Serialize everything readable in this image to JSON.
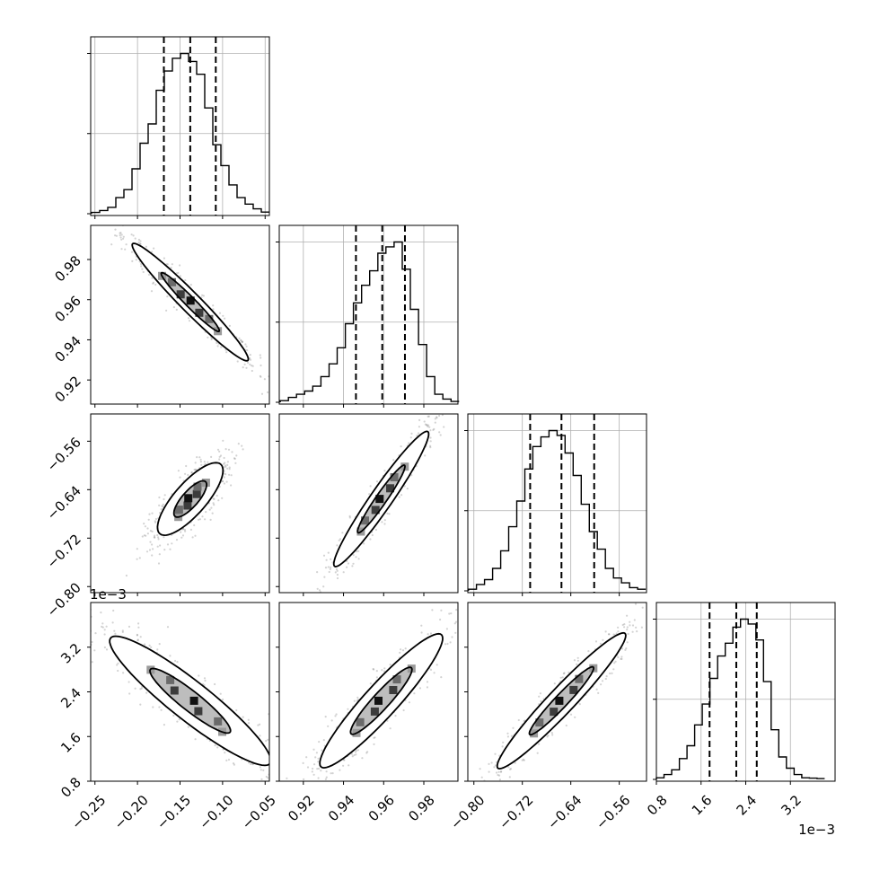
{
  "chart_data": {
    "type": "corner",
    "n_params": 4,
    "params": [
      {
        "ticks": [
          -0.25,
          -0.2,
          -0.15,
          -0.1,
          -0.05
        ],
        "tick_labels": [
          "−0.25",
          "−0.20",
          "−0.15",
          "−0.10",
          "−0.05"
        ],
        "range": [
          -0.255,
          -0.045
        ],
        "offset_text": ""
      },
      {
        "ticks": [
          0.92,
          0.94,
          0.96,
          0.98
        ],
        "tick_labels": [
          "0.92",
          "0.94",
          "0.96",
          "0.98"
        ],
        "range": [
          0.908,
          0.997
        ],
        "offset_text": ""
      },
      {
        "ticks": [
          -0.8,
          -0.72,
          -0.64,
          -0.56
        ],
        "tick_labels": [
          "−0.80",
          "−0.72",
          "−0.64",
          "−0.56"
        ],
        "range": [
          -0.81,
          -0.515
        ],
        "offset_text": ""
      },
      {
        "ticks": [
          0.8,
          1.6,
          2.4,
          3.2
        ],
        "tick_labels": [
          "0.8",
          "1.6",
          "2.4",
          "3.2"
        ],
        "range": [
          0.8,
          4.0
        ],
        "offset_text": "1e−3"
      }
    ],
    "histograms": [
      {
        "edges": [
          -0.254,
          -0.2445,
          -0.235,
          -0.2255,
          -0.216,
          -0.2065,
          -0.197,
          -0.1875,
          -0.178,
          -0.1685,
          -0.159,
          -0.1495,
          -0.14,
          -0.1305,
          -0.121,
          -0.1115,
          -0.102,
          -0.0925,
          -0.083,
          -0.0735,
          -0.064,
          -0.0545,
          -0.045
        ],
        "counts": [
          0.008,
          0.02,
          0.04,
          0.1,
          0.15,
          0.28,
          0.44,
          0.56,
          0.77,
          0.89,
          0.97,
          1.0,
          0.95,
          0.87,
          0.66,
          0.43,
          0.3,
          0.18,
          0.1,
          0.06,
          0.03,
          0.01
        ],
        "quantiles": [
          -0.169,
          -0.138,
          -0.108
        ]
      },
      {
        "edges": [
          0.9085,
          0.91255,
          0.9166,
          0.92065,
          0.9247,
          0.92875,
          0.9328,
          0.93685,
          0.9409,
          0.94495,
          0.949,
          0.95305,
          0.9571,
          0.96115,
          0.9652,
          0.96925,
          0.9733,
          0.97735,
          0.9814,
          0.98545,
          0.9895,
          0.99355,
          0.9976
        ],
        "counts": [
          0.01,
          0.03,
          0.05,
          0.07,
          0.1,
          0.16,
          0.24,
          0.34,
          0.49,
          0.62,
          0.73,
          0.82,
          0.93,
          0.97,
          1.0,
          0.83,
          0.58,
          0.36,
          0.16,
          0.05,
          0.02,
          0.005
        ],
        "quantiles": [
          0.9462,
          0.9593,
          0.9706
        ]
      },
      {
        "edges": [
          -0.809,
          -0.7957,
          -0.7824,
          -0.7691,
          -0.7558,
          -0.7425,
          -0.7292,
          -0.7159,
          -0.7026,
          -0.6893,
          -0.676,
          -0.6627,
          -0.6494,
          -0.6361,
          -0.6228,
          -0.6095,
          -0.5962,
          -0.5829,
          -0.5696,
          -0.5563,
          -0.543,
          -0.5297,
          -0.5164
        ],
        "counts": [
          0.01,
          0.04,
          0.07,
          0.14,
          0.25,
          0.4,
          0.56,
          0.76,
          0.9,
          0.96,
          1.0,
          0.97,
          0.86,
          0.72,
          0.54,
          0.37,
          0.26,
          0.14,
          0.08,
          0.05,
          0.02,
          0.01
        ],
        "quantiles": [
          -0.7071,
          -0.6554,
          -0.6014
        ]
      },
      {
        "edges": [
          0.8,
          0.937,
          1.074,
          1.211,
          1.348,
          1.485,
          1.622,
          1.759,
          1.896,
          2.033,
          2.17,
          2.307,
          2.444,
          2.581,
          2.718,
          2.855,
          2.992,
          3.129,
          3.266,
          3.403,
          3.54,
          3.677,
          3.814
        ],
        "counts": [
          0.01,
          0.03,
          0.06,
          0.13,
          0.21,
          0.34,
          0.47,
          0.63,
          0.77,
          0.85,
          0.95,
          1.0,
          0.97,
          0.87,
          0.61,
          0.31,
          0.14,
          0.07,
          0.03,
          0.01,
          0.008,
          0.005
        ],
        "quantiles": [
          1.7524,
          2.2308,
          2.5974
        ]
      }
    ],
    "pairs": [
      {
        "row": 1,
        "col": 0,
        "center": [
          -0.138,
          0.9588
        ],
        "direction": [
          1,
          -0.42
        ],
        "sigma_major": 0.037,
        "sigma_minor": 0.0032
      },
      {
        "row": 2,
        "col": 0,
        "center": [
          -0.138,
          -0.6554
        ],
        "direction": [
          1,
          1.74
        ],
        "sigma_major": 0.034,
        "sigma_minor": 0.0105
      },
      {
        "row": 2,
        "col": 1,
        "center": [
          0.9588,
          -0.6554
        ],
        "direction": [
          1,
          4.9
        ],
        "sigma_major": 0.057,
        "sigma_minor": 0.0032
      },
      {
        "row": 3,
        "col": 0,
        "center": [
          -0.138,
          2.24
        ],
        "direction": [
          1,
          -13.2
        ],
        "sigma_major": 0.58,
        "sigma_minor": 0.018
      },
      {
        "row": 3,
        "col": 1,
        "center": [
          0.9588,
          2.24
        ],
        "direction": [
          1,
          42
        ],
        "sigma_major": 0.6,
        "sigma_minor": 0.0055
      },
      {
        "row": 3,
        "col": 2,
        "center": [
          -0.6554,
          2.24
        ],
        "direction": [
          1,
          11.9
        ],
        "sigma_major": 0.61,
        "sigma_minor": 0.0145
      }
    ],
    "contour_levels_sigma": [
      1,
      2
    ],
    "grid": true,
    "colors": {
      "ink": "#000000",
      "grid": "#b0b0b0",
      "scatter": "#808080",
      "background": "#ffffff"
    }
  }
}
